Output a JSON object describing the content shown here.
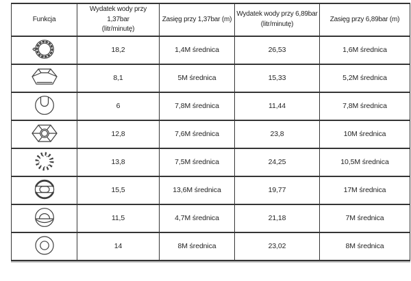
{
  "table": {
    "headers": [
      "Funkcja",
      "Wydatek wody przy 1,37bar\n(litr/minutę)",
      "Zasięg przy 1,37bar (m)",
      "Wydatek wody przy 6,89bar\n(litr/minutę)",
      "Zasięg przy 6,89bar (m)"
    ],
    "rows": [
      {
        "icon": "toothed-ring-nozzle-icon",
        "flow_137": "18,2",
        "range_137": "1,4M średnica",
        "flow_689": "26,53",
        "range_689": "1,6M średnica"
      },
      {
        "icon": "fan-basket-nozzle-icon",
        "flow_137": "8,1",
        "range_137": "5M średnica",
        "flow_689": "15,33",
        "range_689": "5,2M średnica"
      },
      {
        "icon": "horseshoe-circle-nozzle-icon",
        "flow_137": "6",
        "range_137": "7,8M średnica",
        "flow_689": "11,44",
        "range_689": "7,8M średnica"
      },
      {
        "icon": "hex-spoke-nozzle-icon",
        "flow_137": "12,8",
        "range_137": "7,6M średnica",
        "flow_689": "23,8",
        "range_689": "10M średnica"
      },
      {
        "icon": "sunburst-nozzle-icon",
        "flow_137": "13,8",
        "range_137": "7,5M średnica",
        "flow_689": "24,25",
        "range_689": "10,5M średnica"
      },
      {
        "icon": "band-circle-nozzle-icon",
        "flow_137": "15,5",
        "range_137": "13,6M średnica",
        "flow_689": "19,77",
        "range_689": "17M średnica"
      },
      {
        "icon": "dome-circle-nozzle-icon",
        "flow_137": "11,5",
        "range_137": "4,7M średnica",
        "flow_689": "21,18",
        "range_689": "7M średnica"
      },
      {
        "icon": "double-circle-nozzle-icon",
        "flow_137": "14",
        "range_137": "8M średnica",
        "flow_689": "23,02",
        "range_689": "8M średnica"
      }
    ],
    "colors": {
      "border": "#343434",
      "text": "#1f1f1f",
      "background": "#ffffff"
    }
  }
}
